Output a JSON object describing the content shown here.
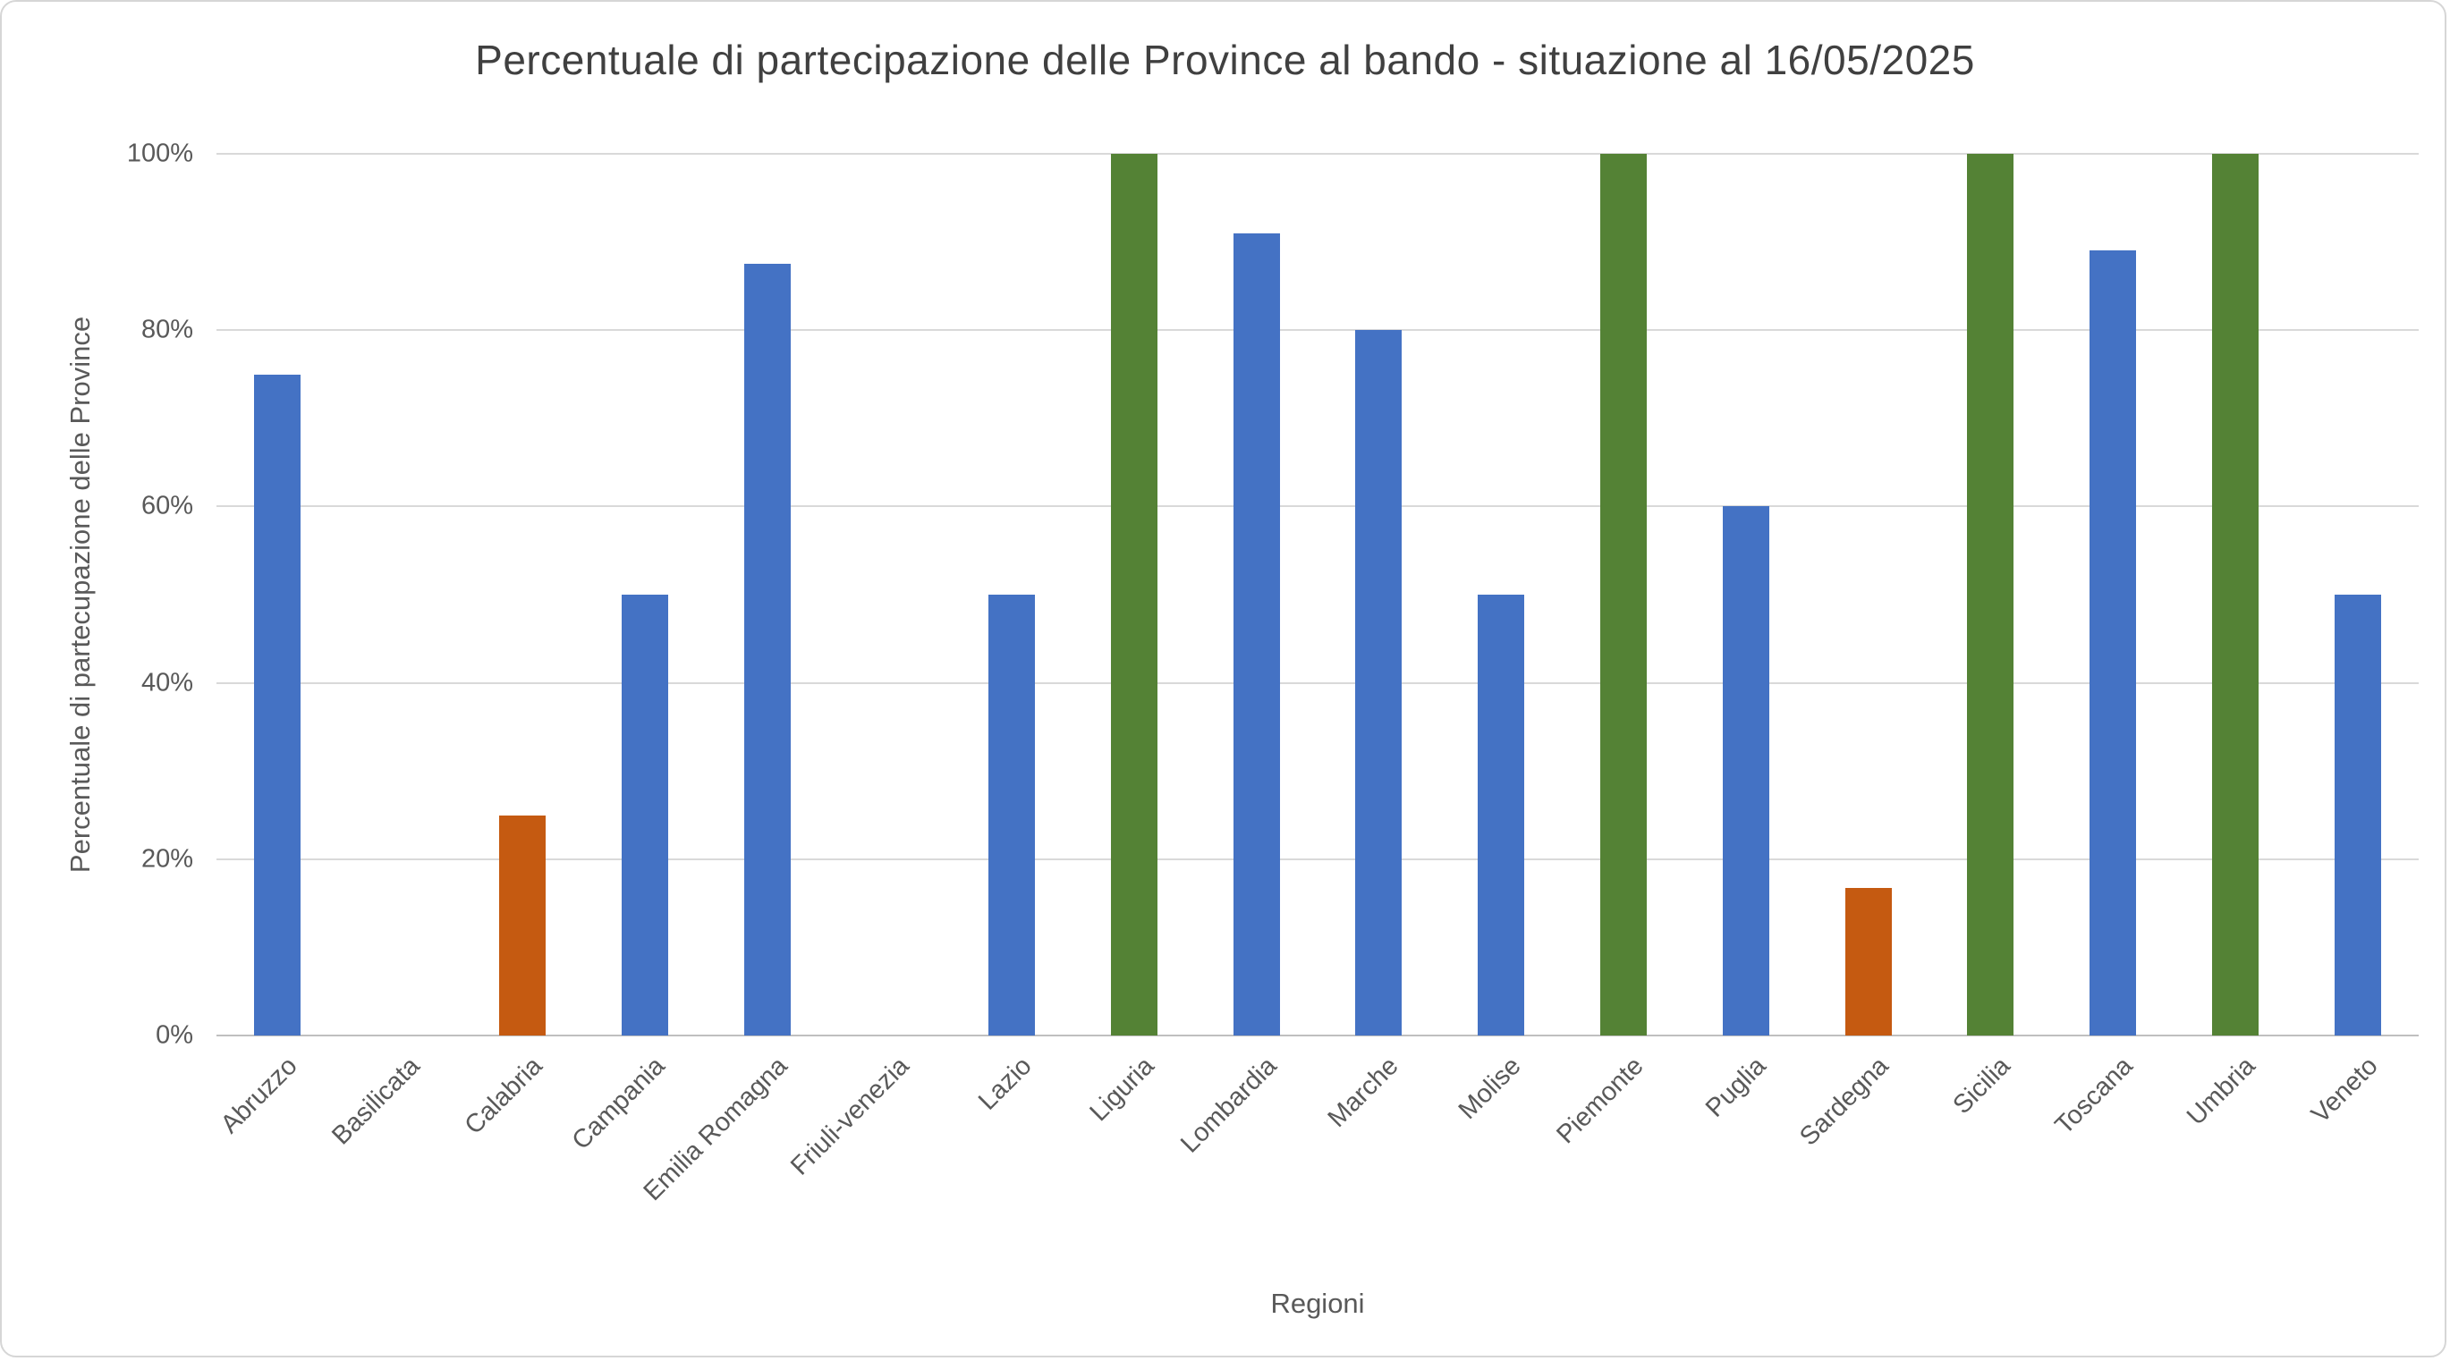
{
  "chart_data": {
    "type": "bar",
    "title": "Percentuale di partecipazione delle Province al bando - situazione al 16/05/2025",
    "xlabel": "Regioni",
    "ylabel": "Percentuale  di partecupazione delle Province",
    "categories": [
      "Abruzzo",
      "Basilicata",
      "Calabria",
      "Campania",
      "Emilia Romagna",
      "Friuli-venezia",
      "Lazio",
      "Liguria",
      "Lombardia",
      "Marche",
      "Molise",
      "Piemonte",
      "Puglia",
      "Sardegna",
      "Sicilia",
      "Toscana",
      "Umbria",
      "Veneto"
    ],
    "values": [
      75,
      0,
      25,
      50,
      87.5,
      0,
      50,
      100,
      91,
      80,
      50,
      100,
      60,
      16.7,
      100,
      89,
      100,
      50
    ],
    "bar_colors": [
      "#4472C4",
      "#4472C4",
      "#C55A11",
      "#4472C4",
      "#4472C4",
      "#4472C4",
      "#4472C4",
      "#548235",
      "#4472C4",
      "#4472C4",
      "#4472C4",
      "#548235",
      "#4472C4",
      "#C55A11",
      "#548235",
      "#4472C4",
      "#548235",
      "#4472C4"
    ],
    "ylim": [
      0,
      100
    ],
    "y_ticks": [
      "0%",
      "20%",
      "40%",
      "60%",
      "80%",
      "100%"
    ],
    "grid": true,
    "legend_position": "none"
  },
  "colors": {
    "series_blue": "#4472C4",
    "series_orange": "#C55A11",
    "series_green": "#548235",
    "gridline": "#D9D9D9",
    "axis_line": "#BFBFBF",
    "axis_text": "#595959",
    "title_text": "#404040"
  }
}
